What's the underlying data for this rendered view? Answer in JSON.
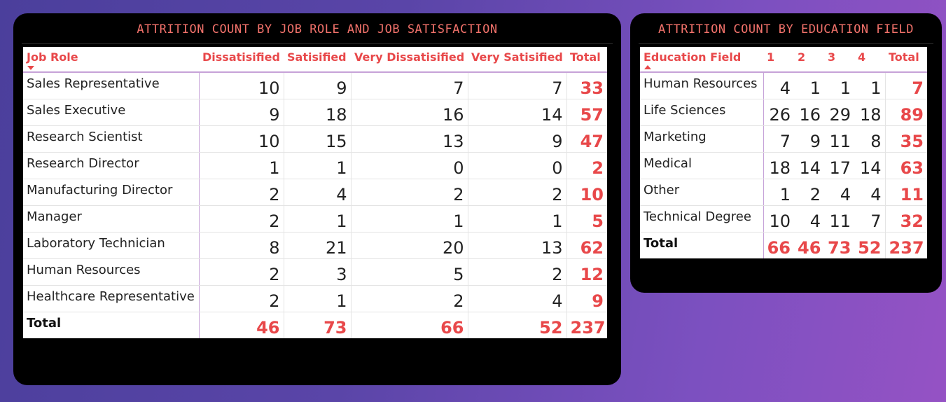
{
  "left_panel": {
    "title": "ATTRITION COUNT BY JOB ROLE AND JOB SATISFACTION",
    "headers": [
      "Job Role",
      "Dissatisified",
      "Satisified",
      "Very Dissatisified",
      "Very Satisified",
      "Total"
    ],
    "rows": [
      [
        "Sales Representative",
        "10",
        "9",
        "7",
        "7",
        "33"
      ],
      [
        "Sales Executive",
        "9",
        "18",
        "16",
        "14",
        "57"
      ],
      [
        "Research Scientist",
        "10",
        "15",
        "13",
        "9",
        "47"
      ],
      [
        "Research Director",
        "1",
        "1",
        "0",
        "0",
        "2"
      ],
      [
        "Manufacturing Director",
        "2",
        "4",
        "2",
        "2",
        "10"
      ],
      [
        "Manager",
        "2",
        "1",
        "1",
        "1",
        "5"
      ],
      [
        "Laboratory Technician",
        "8",
        "21",
        "20",
        "13",
        "62"
      ],
      [
        "Human Resources",
        "2",
        "3",
        "5",
        "2",
        "12"
      ],
      [
        "Healthcare Representative",
        "2",
        "1",
        "2",
        "4",
        "9"
      ]
    ],
    "total_row": [
      "Total",
      "46",
      "73",
      "66",
      "52",
      "237"
    ],
    "sort": "descending",
    "accent_color": "#e8484a"
  },
  "right_panel": {
    "title": "ATTRITION COUNT BY EDUCATION FIELD",
    "headers": [
      "Education Field",
      "1",
      "2",
      "3",
      "4",
      "Total"
    ],
    "rows": [
      [
        "Human Resources",
        "4",
        "1",
        "1",
        "1",
        "7"
      ],
      [
        "Life Sciences",
        "26",
        "16",
        "29",
        "18",
        "89"
      ],
      [
        "Marketing",
        "7",
        "9",
        "11",
        "8",
        "35"
      ],
      [
        "Medical",
        "18",
        "14",
        "17",
        "14",
        "63"
      ],
      [
        "Other",
        "1",
        "2",
        "4",
        "4",
        "11"
      ],
      [
        "Technical Degree",
        "10",
        "4",
        "11",
        "7",
        "32"
      ]
    ],
    "total_row": [
      "Total",
      "66",
      "46",
      "73",
      "52",
      "237"
    ],
    "sort": "ascending",
    "accent_color": "#e8484a"
  }
}
